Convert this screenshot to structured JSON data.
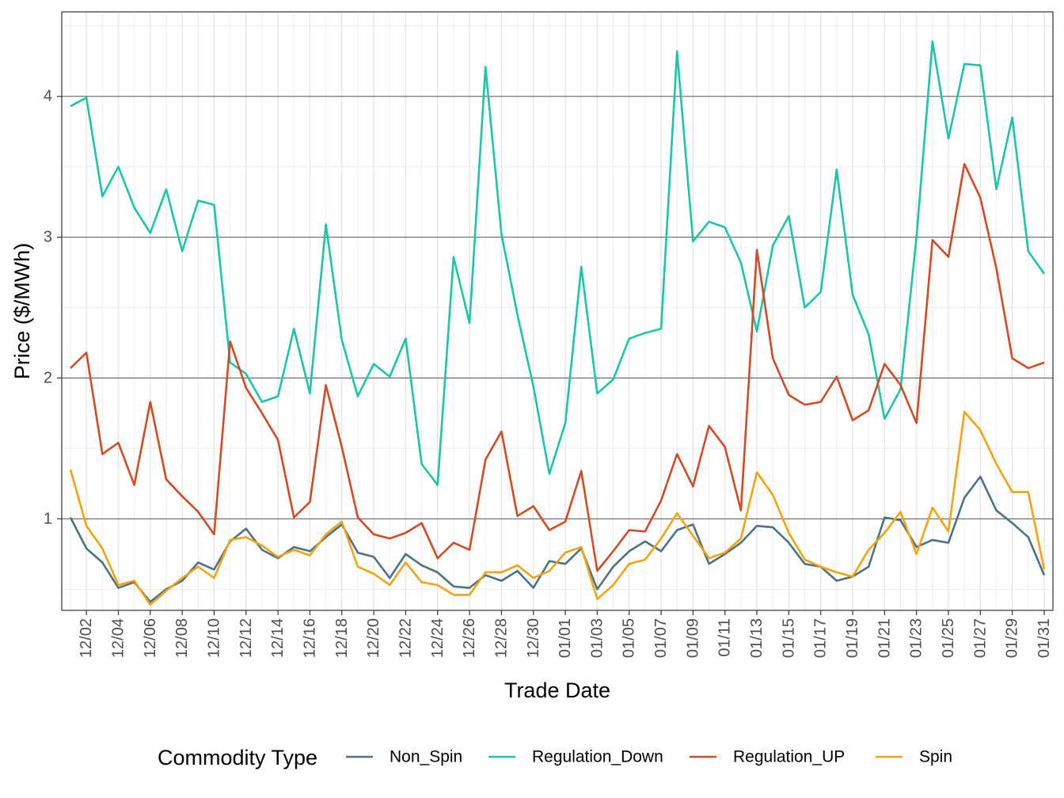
{
  "chart_data": {
    "type": "line",
    "title": "",
    "xlabel": "Trade Date",
    "ylabel": "Price ($/MWh)",
    "ylim": [
      0.35,
      4.6
    ],
    "y_ticks": [
      1,
      2,
      3,
      4
    ],
    "y_tick_labels": [
      "1",
      "2",
      "3",
      "4"
    ],
    "grid": true,
    "x": [
      "12/01",
      "12/02",
      "12/03",
      "12/04",
      "12/05",
      "12/06",
      "12/07",
      "12/08",
      "12/09",
      "12/10",
      "12/11",
      "12/12",
      "12/13",
      "12/14",
      "12/15",
      "12/16",
      "12/17",
      "12/18",
      "12/19",
      "12/20",
      "12/21",
      "12/22",
      "12/23",
      "12/24",
      "12/25",
      "12/26",
      "12/27",
      "12/28",
      "12/29",
      "12/30",
      "12/31",
      "01/01",
      "01/02",
      "01/03",
      "01/04",
      "01/05",
      "01/06",
      "01/07",
      "01/08",
      "01/09",
      "01/10",
      "01/11",
      "01/12",
      "01/13",
      "01/14",
      "01/15",
      "01/16",
      "01/17",
      "01/18",
      "01/19",
      "01/20",
      "01/21",
      "01/22",
      "01/23",
      "01/24",
      "01/25",
      "01/26",
      "01/27",
      "01/28",
      "01/29",
      "01/30",
      "01/31"
    ],
    "x_tick_labels": [
      "12/02",
      "12/04",
      "12/06",
      "12/08",
      "12/10",
      "12/12",
      "12/14",
      "12/16",
      "12/18",
      "12/20",
      "12/22",
      "12/24",
      "12/26",
      "12/28",
      "12/30",
      "01/01",
      "01/03",
      "01/05",
      "01/07",
      "01/09",
      "01/11",
      "01/13",
      "01/15",
      "01/17",
      "01/19",
      "01/21",
      "01/23",
      "01/25",
      "01/27",
      "01/29",
      "01/31"
    ],
    "legend_title": "Commodity Type",
    "legend_position": "bottom",
    "series": [
      {
        "name": "Non_Spin",
        "color": "#4a7385",
        "values": [
          1.01,
          0.79,
          0.69,
          0.51,
          0.55,
          0.41,
          0.5,
          0.56,
          0.69,
          0.64,
          0.84,
          0.93,
          0.78,
          0.72,
          0.8,
          0.77,
          0.87,
          0.96,
          0.76,
          0.73,
          0.58,
          0.75,
          0.67,
          0.62,
          0.52,
          0.51,
          0.6,
          0.56,
          0.63,
          0.51,
          0.7,
          0.68,
          0.79,
          0.5,
          0.66,
          0.77,
          0.84,
          0.77,
          0.92,
          0.96,
          0.68,
          0.75,
          0.83,
          0.95,
          0.94,
          0.83,
          0.68,
          0.66,
          0.56,
          0.59,
          0.66,
          1.01,
          0.99,
          0.8,
          0.85,
          0.83,
          1.15,
          1.3,
          1.06,
          0.97,
          0.87,
          0.6
        ]
      },
      {
        "name": "Regulation_Down",
        "color": "#19c6aa",
        "values": [
          3.93,
          3.99,
          3.29,
          3.5,
          3.21,
          3.03,
          3.34,
          2.9,
          3.26,
          3.23,
          2.11,
          2.03,
          1.83,
          1.87,
          2.35,
          1.89,
          3.09,
          2.27,
          1.87,
          2.1,
          2.01,
          2.28,
          1.39,
          1.24,
          2.86,
          2.39,
          4.21,
          3.02,
          2.45,
          1.94,
          1.32,
          1.68,
          2.79,
          1.89,
          1.99,
          2.28,
          2.32,
          2.35,
          4.32,
          2.97,
          3.11,
          3.07,
          2.82,
          2.33,
          2.94,
          3.15,
          2.5,
          2.61,
          3.48,
          2.59,
          2.31,
          1.71,
          1.92,
          3.0,
          4.39,
          3.7,
          4.23,
          4.22,
          3.34,
          3.85,
          2.9,
          2.74
        ]
      },
      {
        "name": "Regulation_UP",
        "color": "#d34a23",
        "values": [
          2.07,
          2.18,
          1.46,
          1.54,
          1.24,
          1.83,
          1.28,
          1.16,
          1.05,
          0.89,
          2.26,
          1.93,
          1.75,
          1.56,
          1.01,
          1.12,
          1.95,
          1.51,
          1.01,
          0.89,
          0.86,
          0.9,
          0.97,
          0.72,
          0.83,
          0.78,
          1.42,
          1.62,
          1.02,
          1.09,
          0.92,
          0.98,
          1.34,
          0.63,
          0.77,
          0.92,
          0.91,
          1.13,
          1.46,
          1.23,
          1.66,
          1.51,
          1.06,
          2.91,
          2.14,
          1.88,
          1.81,
          1.83,
          2.01,
          1.7,
          1.77,
          2.1,
          1.95,
          1.68,
          2.98,
          2.86,
          3.52,
          3.28,
          2.78,
          2.14,
          2.07,
          2.11
        ]
      },
      {
        "name": "Spin",
        "color": "#f5a20e",
        "values": [
          1.35,
          0.95,
          0.79,
          0.53,
          0.56,
          0.39,
          0.49,
          0.58,
          0.66,
          0.58,
          0.85,
          0.87,
          0.81,
          0.73,
          0.78,
          0.74,
          0.89,
          0.98,
          0.66,
          0.61,
          0.53,
          0.69,
          0.55,
          0.53,
          0.46,
          0.46,
          0.62,
          0.62,
          0.67,
          0.58,
          0.63,
          0.76,
          0.8,
          0.43,
          0.53,
          0.68,
          0.71,
          0.86,
          1.04,
          0.88,
          0.72,
          0.76,
          0.86,
          1.33,
          1.17,
          0.9,
          0.71,
          0.66,
          0.62,
          0.59,
          0.78,
          0.9,
          1.05,
          0.75,
          1.08,
          0.91,
          1.76,
          1.63,
          1.39,
          1.19,
          1.19,
          0.64
        ]
      }
    ]
  }
}
